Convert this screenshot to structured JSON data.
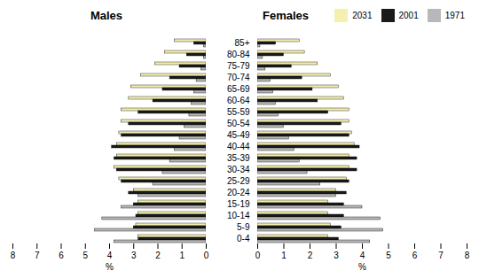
{
  "chart_data": [
    {
      "type": "bar",
      "orientation": "horizontal",
      "title": "Males",
      "categories": [
        "0-4",
        "5-9",
        "10-14",
        "15-19",
        "20-24",
        "25-29",
        "30-34",
        "35-39",
        "40-44",
        "45-49",
        "50-54",
        "55-59",
        "60-64",
        "65-69",
        "70-74",
        "75-79",
        "80-84",
        "85+"
      ],
      "series": [
        {
          "name": "2031",
          "color": "#f5f0b0",
          "values": [
            2.8,
            2.9,
            2.8,
            2.8,
            3.0,
            3.6,
            3.8,
            3.7,
            3.7,
            3.6,
            3.5,
            3.5,
            3.2,
            3.1,
            2.7,
            2.1,
            1.7,
            1.3
          ]
        },
        {
          "name": "2001",
          "color": "#1a1a1a",
          "values": [
            2.8,
            3.0,
            2.9,
            3.0,
            3.2,
            3.5,
            3.7,
            3.8,
            3.9,
            3.5,
            3.2,
            2.8,
            2.2,
            1.8,
            1.5,
            1.1,
            0.8,
            0.5
          ]
        },
        {
          "name": "1971",
          "color": "#b8b8b8",
          "values": [
            3.8,
            4.6,
            4.3,
            3.5,
            2.8,
            2.2,
            1.8,
            1.5,
            1.3,
            1.1,
            0.9,
            0.7,
            0.6,
            0.5,
            0.4,
            0.2,
            0.1,
            0.1
          ]
        }
      ],
      "xlabel": "%",
      "xlim": [
        8,
        0
      ],
      "xticks": [
        8,
        7,
        6,
        5,
        4,
        3,
        2,
        1,
        0
      ]
    },
    {
      "type": "bar",
      "orientation": "horizontal",
      "title": "Females",
      "categories": [
        "0-4",
        "5-9",
        "10-14",
        "15-19",
        "20-24",
        "25-29",
        "30-34",
        "35-39",
        "40-44",
        "45-49",
        "50-54",
        "55-59",
        "60-64",
        "65-69",
        "70-74",
        "75-79",
        "80-84",
        "85+"
      ],
      "series": [
        {
          "name": "2031",
          "color": "#f5f0b0",
          "values": [
            2.7,
            2.8,
            2.7,
            2.7,
            3.0,
            3.4,
            3.5,
            3.5,
            3.7,
            3.6,
            3.5,
            3.5,
            3.3,
            3.1,
            2.8,
            2.3,
            1.8,
            1.6
          ]
        },
        {
          "name": "2001",
          "color": "#1a1a1a",
          "values": [
            3.1,
            3.2,
            3.3,
            3.3,
            3.4,
            3.5,
            3.8,
            3.8,
            3.9,
            3.5,
            3.2,
            2.7,
            2.3,
            2.1,
            1.7,
            1.3,
            1.0,
            0.7
          ]
        },
        {
          "name": "1971",
          "color": "#b8b8b8",
          "values": [
            4.3,
            4.8,
            4.7,
            4.0,
            3.0,
            2.4,
            1.9,
            1.6,
            1.4,
            1.2,
            1.0,
            0.8,
            0.7,
            0.6,
            0.5,
            0.3,
            0.2,
            0.1
          ]
        }
      ],
      "xlabel": "%",
      "xlim": [
        0,
        8
      ],
      "xticks": [
        0,
        1,
        2,
        3,
        4,
        5,
        6,
        7,
        8
      ],
      "legend": "upper right"
    }
  ]
}
